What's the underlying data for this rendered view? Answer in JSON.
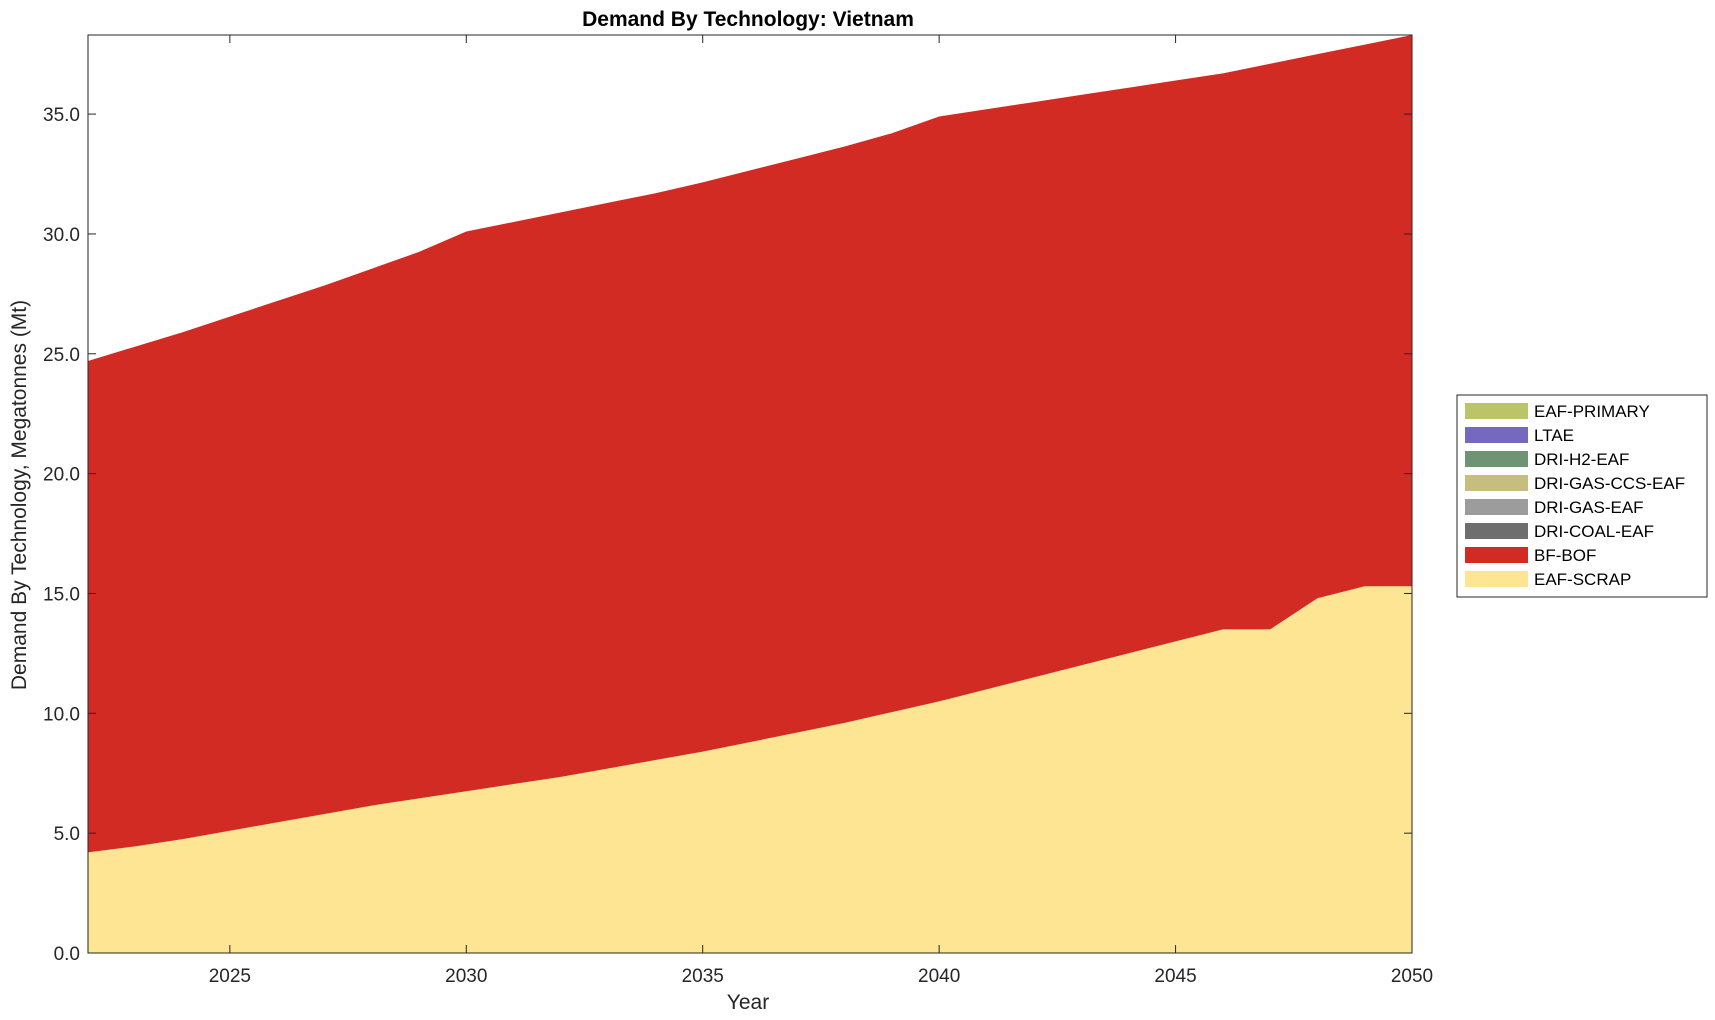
{
  "chart_data": {
    "type": "area",
    "stacked": true,
    "title": "Demand By Technology: Vietnam",
    "xlabel": "Year",
    "ylabel": "Demand By Technology, Megatonnes (Mt)",
    "xlim": [
      2022,
      2050
    ],
    "ylim": [
      0,
      38.3
    ],
    "xticks": [
      "2025",
      "2030",
      "2035",
      "2040",
      "2045",
      "2050"
    ],
    "yticks": [
      "0.0",
      "5.0",
      "10.0",
      "15.0",
      "20.0",
      "25.0",
      "30.0",
      "35.0"
    ],
    "grid": false,
    "legend_position": "outside-right",
    "x": [
      2022,
      2023,
      2024,
      2025,
      2026,
      2027,
      2028,
      2029,
      2030,
      2031,
      2032,
      2033,
      2034,
      2035,
      2036,
      2037,
      2038,
      2039,
      2040,
      2041,
      2042,
      2043,
      2044,
      2045,
      2046,
      2047,
      2048,
      2049,
      2050
    ],
    "series": [
      {
        "name": "EAF-SCRAP",
        "color": "#fde593",
        "values": [
          4.2,
          4.45,
          4.75,
          5.1,
          5.45,
          5.8,
          6.15,
          6.45,
          6.75,
          7.05,
          7.35,
          7.7,
          8.05,
          8.4,
          8.8,
          9.2,
          9.6,
          10.05,
          10.5,
          11.0,
          11.5,
          12.0,
          12.5,
          13.0,
          13.5,
          13.5,
          14.8,
          15.3,
          15.3
        ]
      },
      {
        "name": "BF-BOF",
        "color": "#d22b24",
        "values": [
          20.5,
          20.85,
          21.15,
          21.45,
          21.75,
          22.05,
          22.4,
          22.8,
          23.35,
          23.45,
          23.55,
          23.6,
          23.65,
          23.75,
          23.85,
          23.95,
          24.05,
          24.15,
          24.4,
          24.2,
          24.0,
          23.8,
          23.6,
          23.4,
          23.2,
          23.6,
          22.7,
          22.6,
          23.0
        ]
      },
      {
        "name": "DRI-COAL-EAF",
        "color": "#6e6e6e",
        "values": [
          0,
          0,
          0,
          0,
          0,
          0,
          0,
          0,
          0,
          0,
          0,
          0,
          0,
          0,
          0,
          0,
          0,
          0,
          0,
          0,
          0,
          0,
          0,
          0,
          0,
          0,
          0,
          0,
          0
        ]
      },
      {
        "name": "DRI-GAS-EAF",
        "color": "#9c9c9c",
        "values": [
          0,
          0,
          0,
          0,
          0,
          0,
          0,
          0,
          0,
          0,
          0,
          0,
          0,
          0,
          0,
          0,
          0,
          0,
          0,
          0,
          0,
          0,
          0,
          0,
          0,
          0,
          0,
          0,
          0
        ]
      },
      {
        "name": "DRI-GAS-CCS-EAF",
        "color": "#c6be7f",
        "values": [
          0,
          0,
          0,
          0,
          0,
          0,
          0,
          0,
          0,
          0,
          0,
          0,
          0,
          0,
          0,
          0,
          0,
          0,
          0,
          0,
          0,
          0,
          0,
          0,
          0,
          0,
          0,
          0,
          0
        ]
      },
      {
        "name": "DRI-H2-EAF",
        "color": "#6f9474",
        "values": [
          0,
          0,
          0,
          0,
          0,
          0,
          0,
          0,
          0,
          0,
          0,
          0,
          0,
          0,
          0,
          0,
          0,
          0,
          0,
          0,
          0,
          0,
          0,
          0,
          0,
          0,
          0,
          0,
          0
        ]
      },
      {
        "name": "LTAE",
        "color": "#7468bf",
        "values": [
          0,
          0,
          0,
          0,
          0,
          0,
          0,
          0,
          0,
          0,
          0,
          0,
          0,
          0,
          0,
          0,
          0,
          0,
          0,
          0,
          0,
          0,
          0,
          0,
          0,
          0,
          0,
          0,
          0
        ]
      },
      {
        "name": "EAF-PRIMARY",
        "color": "#bcc46a",
        "values": [
          0,
          0,
          0,
          0,
          0,
          0,
          0,
          0,
          0,
          0,
          0,
          0,
          0,
          0,
          0,
          0,
          0,
          0,
          0,
          0,
          0,
          0,
          0,
          0,
          0,
          0,
          0,
          0,
          0
        ]
      }
    ]
  }
}
